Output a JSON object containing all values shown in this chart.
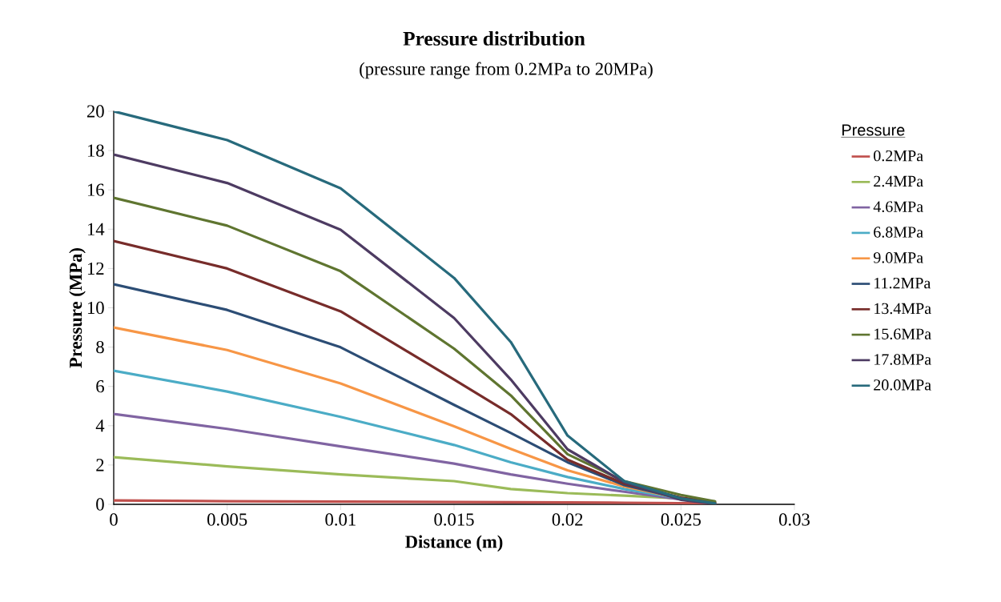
{
  "chart_data": {
    "type": "line",
    "title": "Pressure distribution",
    "subtitle": "(pressure range from 0.2MPa to 20MPa)",
    "xlabel": "Distance (m)",
    "ylabel": "Pressure (MPa)",
    "legend_title": "Pressure",
    "x": [
      0,
      0.005,
      0.01,
      0.015,
      0.0175,
      0.02,
      0.0225,
      0.025,
      0.0265
    ],
    "series": [
      {
        "name": "0.2MPa",
        "color": "#c0504d",
        "values": [
          0.2,
          0.16,
          0.14,
          0.12,
          0.11,
          0.1,
          0.08,
          0.06,
          0.05
        ]
      },
      {
        "name": "2.4MPa",
        "color": "#9bbb59",
        "values": [
          2.4,
          1.93,
          1.52,
          1.18,
          0.78,
          0.57,
          0.44,
          0.3,
          0.15
        ]
      },
      {
        "name": "4.6MPa",
        "color": "#8064a2",
        "values": [
          4.6,
          3.84,
          2.95,
          2.07,
          1.52,
          1.05,
          0.64,
          0.25,
          0.05
        ]
      },
      {
        "name": "6.8MPa",
        "color": "#4bacc6",
        "values": [
          6.8,
          5.74,
          4.45,
          3.02,
          2.14,
          1.39,
          0.78,
          0.3,
          0.07
        ]
      },
      {
        "name": "9.0MPa",
        "color": "#f79646",
        "values": [
          9.0,
          7.85,
          6.15,
          3.97,
          2.82,
          1.73,
          0.91,
          0.3,
          0.08
        ]
      },
      {
        "name": "11.2MPa",
        "color": "#2c4d75",
        "values": [
          11.2,
          9.89,
          7.99,
          5.06,
          3.63,
          2.14,
          0.98,
          0.3,
          0.08
        ]
      },
      {
        "name": "13.4MPa",
        "color": "#772c2a",
        "values": [
          13.4,
          12.0,
          9.82,
          6.35,
          4.59,
          2.27,
          1.05,
          0.34,
          0.1
        ]
      },
      {
        "name": "15.6MPa",
        "color": "#5f7530",
        "values": [
          15.6,
          14.18,
          11.86,
          7.92,
          5.54,
          2.55,
          1.18,
          0.48,
          0.15
        ]
      },
      {
        "name": "17.8MPa",
        "color": "#4d3b62",
        "values": [
          17.8,
          16.35,
          13.97,
          9.48,
          6.35,
          2.8,
          1.12,
          0.23,
          0.02
        ]
      },
      {
        "name": "20.0MPa",
        "color": "#276a7c",
        "values": [
          20.0,
          18.53,
          16.08,
          11.52,
          8.26,
          3.5,
          1.18,
          0.3,
          0.05
        ]
      }
    ],
    "xlim": [
      0,
      0.03
    ],
    "ylim": [
      0,
      20
    ],
    "xticks": [
      0,
      0.005,
      0.01,
      0.015,
      0.02,
      0.025,
      0.03
    ],
    "yticks": [
      0,
      2,
      4,
      6,
      8,
      10,
      12,
      14,
      16,
      18,
      20
    ],
    "grid": false,
    "legend": "right",
    "marker": "none",
    "line_style": "solid"
  }
}
